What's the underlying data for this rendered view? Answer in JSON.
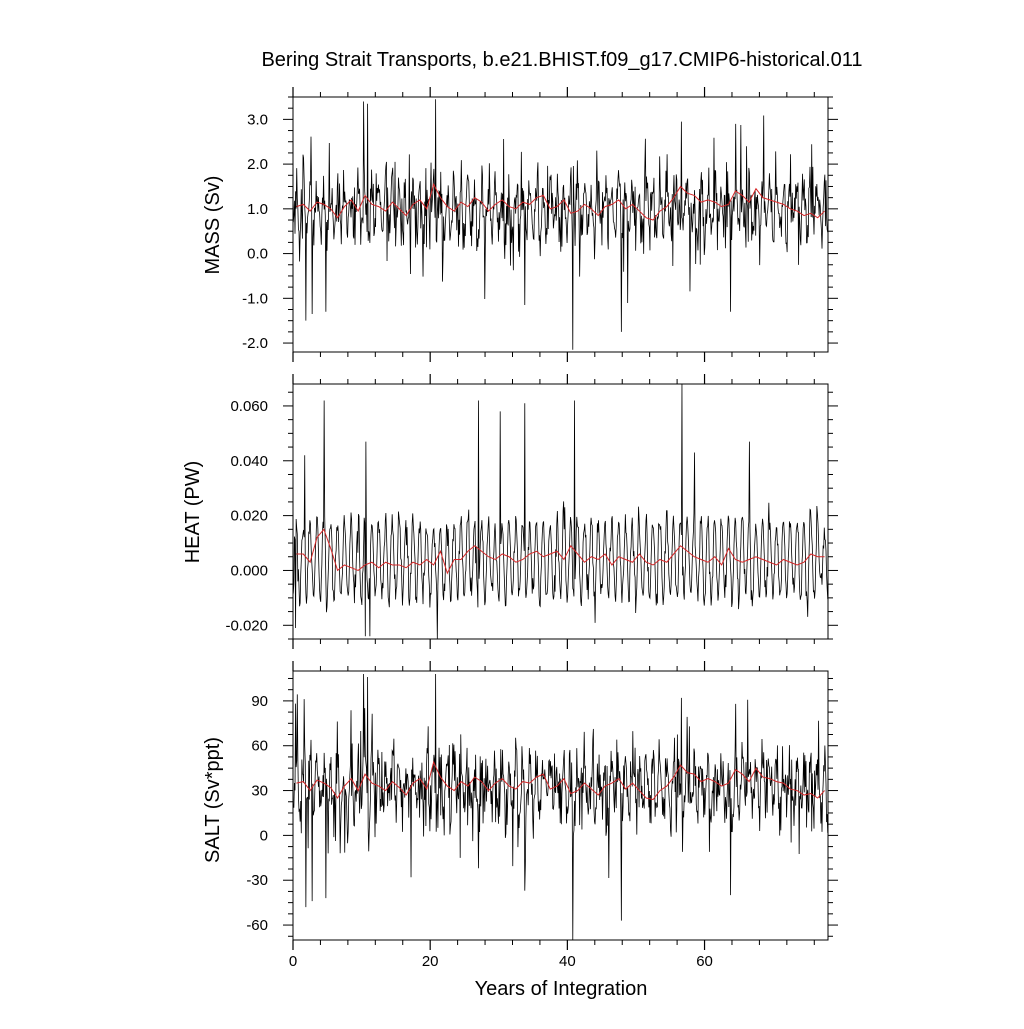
{
  "title": "Bering Strait Transports, b.e21.BHIST.f09_g17.CMIP6-historical.011",
  "xlabel": "Years of Integration",
  "colors": {
    "monthly": "#000000",
    "annual": "#d62728"
  },
  "chart_data": [
    {
      "type": "line",
      "name": "mass",
      "ylabel": "MASS (Sv)",
      "xlim": [
        0,
        78
      ],
      "ylim": [
        -2.2,
        3.5
      ],
      "xticks": [
        0,
        20,
        40,
        60
      ],
      "xtick_labels": [
        "0",
        "20",
        "40",
        "60"
      ],
      "yticks": [
        -2,
        -1,
        0,
        1,
        2,
        3
      ],
      "ytick_labels": [
        "-2.0",
        "-1.0",
        "0.0",
        "1.0",
        "2.0",
        "3.0"
      ],
      "monthly": {
        "mean": 1.0,
        "amplitude": 0.95,
        "seasonal": 0.45,
        "min": -2.15,
        "max": 3.45,
        "spikes_high": [
          [
            10.3,
            3.4
          ],
          [
            10.9,
            3.35
          ],
          [
            20.8,
            3.45
          ],
          [
            56.6,
            2.95
          ],
          [
            64.5,
            2.9
          ]
        ],
        "spikes_low": [
          [
            1.9,
            -1.5
          ],
          [
            2.8,
            -1.35
          ],
          [
            4.8,
            -1.3
          ],
          [
            40.8,
            -2.15
          ],
          [
            47.9,
            -1.75
          ],
          [
            63.8,
            -1.3
          ],
          [
            33.8,
            -1.15
          ]
        ]
      },
      "annual": {
        "x": [
          0.5,
          1.5,
          2.5,
          3.5,
          4.5,
          5.5,
          6.5,
          7.5,
          8.5,
          9.5,
          10.5,
          11.5,
          12.5,
          13.5,
          14.5,
          15.5,
          16.5,
          17.5,
          18.5,
          19.5,
          20.5,
          21.5,
          22.5,
          23.5,
          24.5,
          25.5,
          26.5,
          27.5,
          28.5,
          29.5,
          30.5,
          31.5,
          32.5,
          33.5,
          34.5,
          35.5,
          36.5,
          37.5,
          38.5,
          39.5,
          40.5,
          41.5,
          42.5,
          43.5,
          44.5,
          45.5,
          46.5,
          47.5,
          48.5,
          49.5,
          50.5,
          51.5,
          52.5,
          53.5,
          54.5,
          55.5,
          56.5,
          57.5,
          58.5,
          59.5,
          60.5,
          61.5,
          62.5,
          63.5,
          64.5,
          65.5,
          66.5,
          67.5,
          68.5,
          69.5,
          70.5,
          71.5,
          72.5,
          73.5,
          74.5,
          75.5,
          76.5,
          77.5
        ],
        "y": [
          1.05,
          1.1,
          0.95,
          1.15,
          1.1,
          1.0,
          0.8,
          1.05,
          1.2,
          0.95,
          1.3,
          1.1,
          1.05,
          0.95,
          1.15,
          1.0,
          0.85,
          1.1,
          1.2,
          1.0,
          1.55,
          1.25,
          1.05,
          0.95,
          1.15,
          1.05,
          1.25,
          1.15,
          0.95,
          1.1,
          1.2,
          1.05,
          1.0,
          1.15,
          1.1,
          1.25,
          1.3,
          1.0,
          1.05,
          1.2,
          0.9,
          0.95,
          1.1,
          1.0,
          0.85,
          1.05,
          1.1,
          1.2,
          1.0,
          1.1,
          0.95,
          0.8,
          0.75,
          0.95,
          1.05,
          1.25,
          1.5,
          1.35,
          1.3,
          1.15,
          1.2,
          1.15,
          1.05,
          1.1,
          1.4,
          1.3,
          1.15,
          1.45,
          1.25,
          1.2,
          1.15,
          1.1,
          1.0,
          0.95,
          0.85,
          0.9,
          0.8,
          0.95
        ]
      }
    },
    {
      "type": "line",
      "name": "heat",
      "ylabel": "HEAT (PW)",
      "xlim": [
        0,
        78
      ],
      "ylim": [
        -0.025,
        0.068
      ],
      "xticks": [
        0,
        20,
        40,
        60
      ],
      "xtick_labels": [
        "",
        "",
        "",
        ""
      ],
      "yticks": [
        -0.02,
        0.0,
        0.02,
        0.04,
        0.06
      ],
      "ytick_labels": [
        "-0.020",
        "0.000",
        "0.020",
        "0.040",
        "0.060"
      ],
      "monthly": {
        "mean": 0.004,
        "amplitude": 0.006,
        "seasonal": 0.014,
        "min": -0.025,
        "max": 0.068,
        "spikes_high": [
          [
            4.5,
            0.062
          ],
          [
            27.0,
            0.062
          ],
          [
            30.2,
            0.058
          ],
          [
            33.8,
            0.061
          ],
          [
            41.0,
            0.062
          ],
          [
            56.7,
            0.068
          ],
          [
            58.5,
            0.043
          ],
          [
            66.5,
            0.047
          ],
          [
            10.6,
            0.047
          ],
          [
            1.7,
            0.042
          ]
        ],
        "spikes_low": [
          [
            10.5,
            -0.024
          ],
          [
            11.2,
            -0.024
          ],
          [
            21.0,
            -0.025
          ],
          [
            0.4,
            -0.021
          ]
        ]
      },
      "annual": {
        "x": [
          0.5,
          1.5,
          2.5,
          3.5,
          4.5,
          5.5,
          6.5,
          7.5,
          8.5,
          9.5,
          10.5,
          11.5,
          12.5,
          13.5,
          14.5,
          15.5,
          16.5,
          17.5,
          18.5,
          19.5,
          20.5,
          21.5,
          22.5,
          23.5,
          24.5,
          25.5,
          26.5,
          27.5,
          28.5,
          29.5,
          30.5,
          31.5,
          32.5,
          33.5,
          34.5,
          35.5,
          36.5,
          37.5,
          38.5,
          39.5,
          40.5,
          41.5,
          42.5,
          43.5,
          44.5,
          45.5,
          46.5,
          47.5,
          48.5,
          49.5,
          50.5,
          51.5,
          52.5,
          53.5,
          54.5,
          55.5,
          56.5,
          57.5,
          58.5,
          59.5,
          60.5,
          61.5,
          62.5,
          63.5,
          64.5,
          65.5,
          66.5,
          67.5,
          68.5,
          69.5,
          70.5,
          71.5,
          72.5,
          73.5,
          74.5,
          75.5,
          76.5,
          77.5
        ],
        "y": [
          0.006,
          0.006,
          0.003,
          0.012,
          0.015,
          0.008,
          0.0,
          0.002,
          0.001,
          0.0,
          0.002,
          0.003,
          0.001,
          0.003,
          0.002,
          0.002,
          0.001,
          0.003,
          0.002,
          0.004,
          0.002,
          0.007,
          -0.001,
          0.004,
          0.004,
          0.007,
          0.009,
          0.007,
          0.005,
          0.004,
          0.006,
          0.005,
          0.003,
          0.004,
          0.006,
          0.007,
          0.005,
          0.006,
          0.007,
          0.004,
          0.009,
          0.006,
          0.003,
          0.005,
          0.004,
          0.006,
          0.002,
          0.005,
          0.004,
          0.003,
          0.006,
          0.003,
          0.002,
          0.004,
          0.003,
          0.006,
          0.009,
          0.007,
          0.005,
          0.004,
          0.003,
          0.005,
          0.002,
          0.008,
          0.004,
          0.003,
          0.004,
          0.005,
          0.004,
          0.003,
          0.002,
          0.004,
          0.003,
          0.002,
          0.003,
          0.006,
          0.005,
          0.005
        ]
      }
    },
    {
      "type": "line",
      "name": "salt",
      "ylabel": "SALT (Sv*ppt)",
      "xlim": [
        0,
        78
      ],
      "ylim": [
        -70,
        110
      ],
      "xticks": [
        0,
        20,
        40,
        60
      ],
      "xtick_labels": [
        "0",
        "20",
        "40",
        "60"
      ],
      "yticks": [
        -60,
        -30,
        0,
        30,
        60,
        90
      ],
      "ytick_labels": [
        "-60",
        "-30",
        "0",
        "30",
        "60",
        "90"
      ],
      "monthly": {
        "mean": 32.0,
        "amplitude": 30.0,
        "seasonal": 14.0,
        "min": -70.0,
        "max": 110.0,
        "spikes_high": [
          [
            10.3,
            108
          ],
          [
            10.9,
            106
          ],
          [
            20.8,
            108
          ],
          [
            56.6,
            92
          ],
          [
            64.5,
            88
          ]
        ],
        "spikes_low": [
          [
            1.9,
            -48
          ],
          [
            2.8,
            -44
          ],
          [
            4.8,
            -42
          ],
          [
            40.8,
            -70
          ],
          [
            47.9,
            -57
          ],
          [
            63.8,
            -40
          ],
          [
            33.8,
            -37
          ]
        ]
      },
      "annual": {
        "x": [
          0.5,
          1.5,
          2.5,
          3.5,
          4.5,
          5.5,
          6.5,
          7.5,
          8.5,
          9.5,
          10.5,
          11.5,
          12.5,
          13.5,
          14.5,
          15.5,
          16.5,
          17.5,
          18.5,
          19.5,
          20.5,
          21.5,
          22.5,
          23.5,
          24.5,
          25.5,
          26.5,
          27.5,
          28.5,
          29.5,
          30.5,
          31.5,
          32.5,
          33.5,
          34.5,
          35.5,
          36.5,
          37.5,
          38.5,
          39.5,
          40.5,
          41.5,
          42.5,
          43.5,
          44.5,
          45.5,
          46.5,
          47.5,
          48.5,
          49.5,
          50.5,
          51.5,
          52.5,
          53.5,
          54.5,
          55.5,
          56.5,
          57.5,
          58.5,
          59.5,
          60.5,
          61.5,
          62.5,
          63.5,
          64.5,
          65.5,
          66.5,
          67.5,
          68.5,
          69.5,
          70.5,
          71.5,
          72.5,
          73.5,
          74.5,
          75.5,
          76.5,
          77.5
        ],
        "y": [
          35,
          36,
          30,
          37,
          35,
          32,
          25,
          33,
          38,
          30,
          41,
          35,
          33,
          30,
          36,
          32,
          27,
          35,
          38,
          31,
          49,
          39,
          33,
          30,
          36,
          33,
          39,
          36,
          30,
          35,
          38,
          33,
          31,
          36,
          35,
          39,
          41,
          31,
          33,
          38,
          28,
          30,
          35,
          31,
          27,
          33,
          35,
          38,
          31,
          35,
          30,
          25,
          24,
          30,
          33,
          39,
          47,
          42,
          41,
          36,
          38,
          36,
          33,
          35,
          44,
          41,
          36,
          45,
          39,
          38,
          36,
          35,
          31,
          30,
          27,
          28,
          25,
          30
        ]
      }
    }
  ]
}
